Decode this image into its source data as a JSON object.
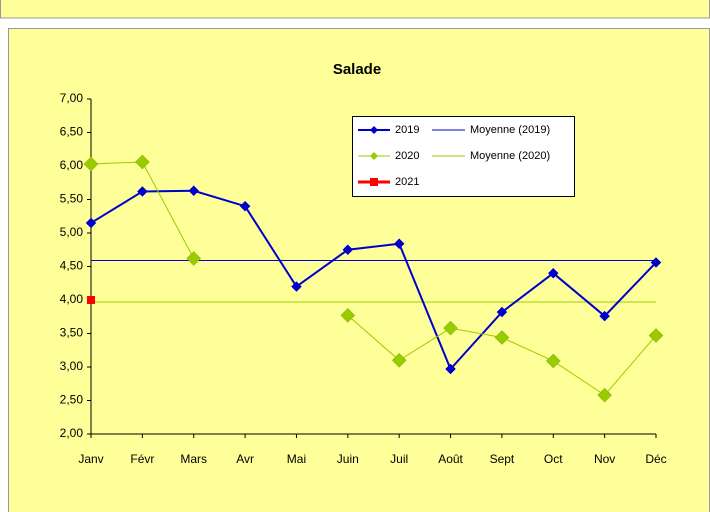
{
  "chart_data": {
    "type": "line",
    "title": "Salade",
    "categories": [
      "Janv",
      "Févr",
      "Mars",
      "Avr",
      "Mai",
      "Juin",
      "Juil",
      "Août",
      "Sept",
      "Oct",
      "Nov",
      "Déc"
    ],
    "series": [
      {
        "name": "2019",
        "color": "#0000cc",
        "values": [
          5.15,
          5.62,
          5.63,
          5.4,
          4.2,
          4.75,
          4.84,
          2.97,
          3.82,
          4.4,
          3.76,
          4.56
        ]
      },
      {
        "name": "2020",
        "color": "#99cc00",
        "values": [
          6.03,
          6.06,
          4.62,
          null,
          null,
          3.77,
          3.1,
          3.58,
          3.44,
          3.09,
          2.58,
          3.47
        ]
      },
      {
        "name": "2021",
        "color": "#ff0000",
        "values": [
          4.0,
          null,
          null,
          null,
          null,
          null,
          null,
          null,
          null,
          null,
          null,
          null
        ]
      }
    ],
    "averages": [
      {
        "name": "Moyenne (2019)",
        "color": "#0000cc",
        "value": 4.59
      },
      {
        "name": "Moyenne (2020)",
        "color": "#99cc00",
        "value": 3.97
      }
    ],
    "ylim": [
      2,
      7
    ],
    "yticks": [
      {
        "value": 2,
        "label": "2,00"
      },
      {
        "value": 2.5,
        "label": "2,50"
      },
      {
        "value": 3,
        "label": "3,00"
      },
      {
        "value": 3.5,
        "label": "3,50"
      },
      {
        "value": 4,
        "label": "4,00"
      },
      {
        "value": 4.5,
        "label": "4,50"
      },
      {
        "value": 5,
        "label": "5,00"
      },
      {
        "value": 5.5,
        "label": "5,50"
      },
      {
        "value": 6,
        "label": "6,00"
      },
      {
        "value": 6.5,
        "label": "6,50"
      },
      {
        "value": 7,
        "label": "7,00"
      }
    ],
    "grid": false,
    "legend": "top-right"
  }
}
